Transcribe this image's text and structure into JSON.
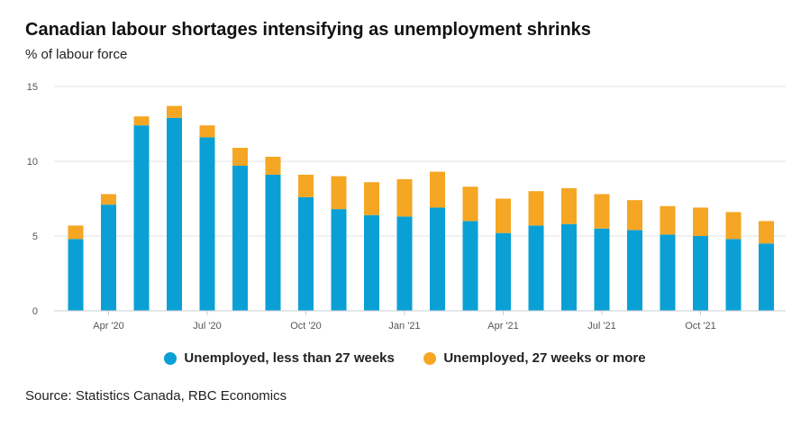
{
  "chart_data": {
    "type": "bar",
    "stacked": true,
    "title": "Canadian labour shortages intensifying as unemployment shrinks",
    "subtitle": "% of labour force",
    "source": "Source: Statistics Canada, RBC Economics",
    "ylim": [
      0,
      15
    ],
    "yticks": [
      0,
      5,
      10,
      15
    ],
    "gridlines": true,
    "legend_position": "bottom",
    "categories": [
      "Mar '20",
      "Apr '20",
      "May '20",
      "Jun '20",
      "Jul '20",
      "Aug '20",
      "Sep '20",
      "Oct '20",
      "Nov '20",
      "Dec '20",
      "Jan '21",
      "Feb '21",
      "Mar '21",
      "Apr '21",
      "May '21",
      "Jun '21",
      "Jul '21",
      "Aug '21",
      "Sep '21",
      "Oct '21",
      "Nov '21",
      "Dec '21"
    ],
    "xtick_labels": [
      {
        "category_index": 1,
        "label": "Apr '20"
      },
      {
        "category_index": 4,
        "label": "Jul '20"
      },
      {
        "category_index": 7,
        "label": "Oct '20"
      },
      {
        "category_index": 10,
        "label": "Jan '21"
      },
      {
        "category_index": 13,
        "label": "Apr '21"
      },
      {
        "category_index": 16,
        "label": "Jul '21"
      },
      {
        "category_index": 19,
        "label": "Oct '21"
      }
    ],
    "series": [
      {
        "name": "Unemployed, less than 27 weeks",
        "color": "#0aa0d6",
        "values": [
          4.8,
          7.1,
          12.4,
          12.9,
          11.6,
          9.7,
          9.1,
          7.6,
          6.8,
          6.4,
          6.3,
          6.9,
          6.0,
          5.2,
          5.7,
          5.8,
          5.5,
          5.4,
          5.1,
          5.0,
          4.8,
          4.5
        ]
      },
      {
        "name": "Unemployed, 27 weeks or more",
        "color": "#f5a623",
        "values": [
          0.9,
          0.7,
          0.6,
          0.8,
          0.8,
          1.2,
          1.2,
          1.5,
          2.2,
          2.2,
          2.5,
          2.4,
          2.3,
          2.3,
          2.3,
          2.4,
          2.3,
          2.0,
          1.9,
          1.9,
          1.8,
          1.5
        ]
      }
    ]
  }
}
